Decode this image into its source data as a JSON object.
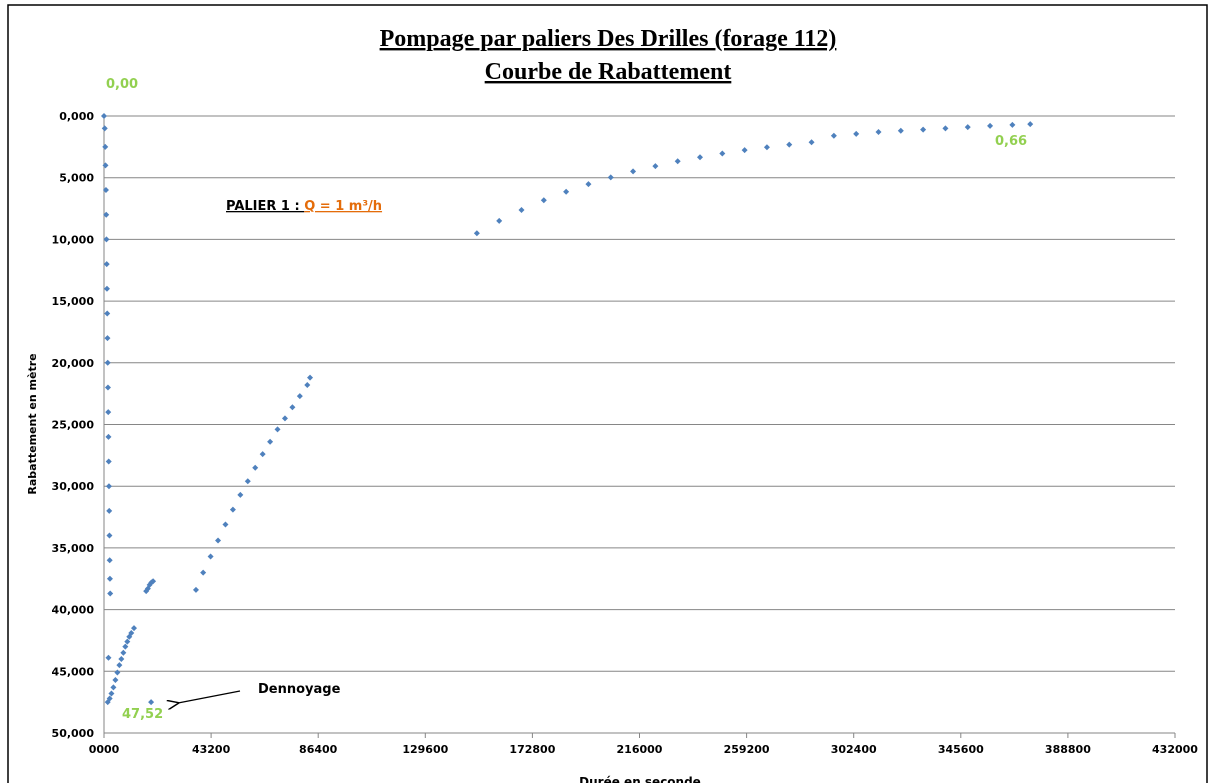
{
  "chart_data": {
    "type": "scatter",
    "title": "Pompage par paliers Des Drilles (forage 112)",
    "subtitle": "Courbe de Rabattement",
    "x_label": "Durée en seconde",
    "y_label": "Rabattement en mètre",
    "color": "#4f81bd",
    "y_inverted": true,
    "grid": true,
    "annotations": [
      {
        "text": "0,00",
        "color": "#92d050"
      },
      {
        "text": "0,66",
        "color": "#92d050"
      },
      {
        "text": "47,52",
        "color": "#92d050"
      },
      {
        "text": "Dennoyage",
        "color": "#000000"
      }
    ],
    "palier_label": {
      "text": "PALIER 1 : ",
      "flow": "Q = 1 m³/h",
      "flow_color": "#e46c0a"
    },
    "x": [
      0,
      300,
      500,
      600,
      800,
      900,
      1000,
      1100,
      1200,
      1300,
      1400,
      1500,
      1600,
      1700,
      1800,
      1900,
      2000,
      2100,
      2200,
      2300,
      2400,
      2500,
      1500,
      2300,
      3000,
      3800,
      4600,
      5400,
      6200,
      7000,
      7800,
      8600,
      9400,
      10200,
      11000,
      12100,
      1800,
      17000,
      17700,
      18400,
      19100,
      19800,
      19000,
      37100,
      40000,
      43000,
      46000,
      49000,
      52000,
      55000,
      58000,
      61000,
      64000,
      67000,
      70000,
      73000,
      76000,
      79000,
      82000,
      83100,
      150400,
      159400,
      168400,
      177400,
      186400,
      195400,
      204400,
      213400,
      222400,
      231400,
      240400,
      249400,
      258400,
      267400,
      276400,
      285400,
      294400,
      303400,
      312400,
      321400,
      330400,
      339400,
      348400,
      357400,
      366400,
      373600
    ],
    "values": [
      0,
      1,
      2.5,
      4,
      6,
      8,
      10,
      12,
      14,
      16,
      18,
      20,
      22,
      24,
      26,
      28,
      30,
      32,
      34,
      36,
      37.5,
      38.7,
      47.5,
      47.2,
      46.8,
      46.3,
      45.7,
      45.1,
      44.5,
      44.0,
      43.5,
      43.0,
      42.6,
      42.2,
      41.9,
      41.5,
      43.9,
      38.5,
      38.3,
      38.0,
      37.8,
      37.7,
      47.5,
      38.4,
      37.0,
      35.7,
      34.4,
      33.1,
      31.9,
      30.7,
      29.6,
      28.5,
      27.4,
      26.4,
      25.4,
      24.5,
      23.6,
      22.7,
      21.8,
      21.2,
      9.5,
      8.5,
      7.62,
      6.83,
      6.14,
      5.52,
      4.97,
      4.49,
      4.06,
      3.67,
      3.34,
      3.04,
      2.77,
      2.53,
      2.32,
      2.13,
      1.6,
      1.45,
      1.3,
      1.2,
      1.1,
      1.0,
      0.9,
      0.8,
      0.72,
      0.66
    ],
    "xlim": [
      0,
      432000
    ],
    "xticks": [
      {
        "value": 0,
        "label": "0000"
      },
      43200,
      86400,
      129600,
      172800,
      216000,
      259200,
      302400,
      345600,
      388800,
      432000
    ],
    "ylim": [
      0,
      50
    ],
    "yticks": [
      {
        "value": 0,
        "label": "0,000"
      },
      {
        "value": 5,
        "label": "5,000"
      },
      {
        "value": 10,
        "label": "10,000"
      },
      {
        "value": 15,
        "label": "15,000"
      },
      {
        "value": 20,
        "label": "20,000"
      },
      {
        "value": 25,
        "label": "25,000"
      },
      {
        "value": 30,
        "label": "30,000"
      },
      {
        "value": 35,
        "label": "35,000"
      },
      {
        "value": 40,
        "label": "40,000"
      },
      {
        "value": 45,
        "label": "45,000"
      },
      {
        "value": 50,
        "label": "50,000"
      }
    ]
  }
}
